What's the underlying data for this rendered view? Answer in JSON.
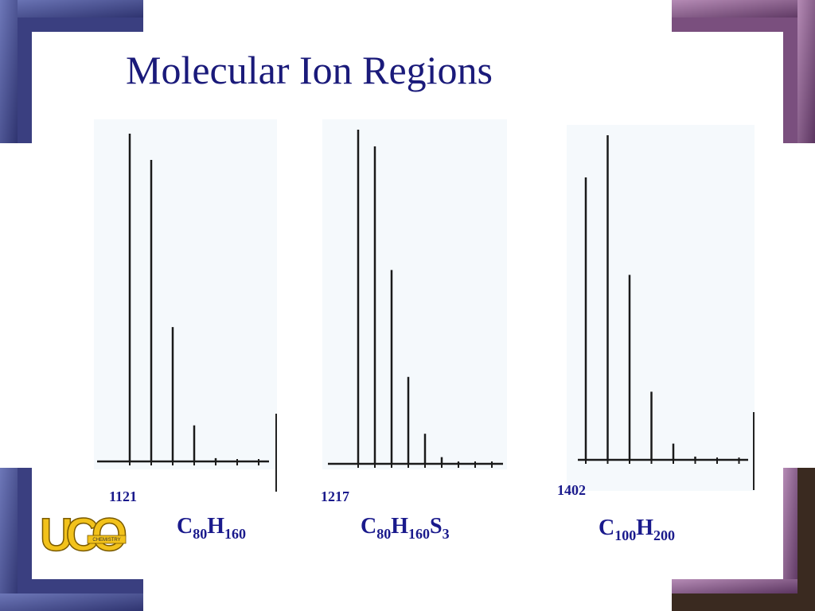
{
  "header": {
    "title": "Molecular Ion Regions"
  },
  "logo": {
    "text": "UCO",
    "subtext": "CHEMISTRY"
  },
  "chart_data": [
    {
      "type": "stick",
      "start_label": "1121",
      "formula": [
        "C",
        "80",
        "H",
        "160"
      ],
      "ylim": [
        0,
        100
      ],
      "color": "#1a1a1a",
      "values": [
        100,
        92,
        41,
        11,
        1
      ]
    },
    {
      "type": "stick",
      "start_label": "1217",
      "formula": [
        "C",
        "80",
        "H",
        "160",
        "S",
        "3"
      ],
      "ylim": [
        0,
        100
      ],
      "color": "#1a1a1a",
      "values": [
        100,
        95,
        58,
        26,
        9,
        2,
        0.5
      ]
    },
    {
      "type": "stick",
      "start_label": "1402",
      "formula": [
        "C",
        "100",
        "H",
        "200"
      ],
      "ylim": [
        0,
        100
      ],
      "color": "#1a1a1a",
      "values": [
        87,
        100,
        57,
        21,
        5,
        1
      ]
    }
  ]
}
